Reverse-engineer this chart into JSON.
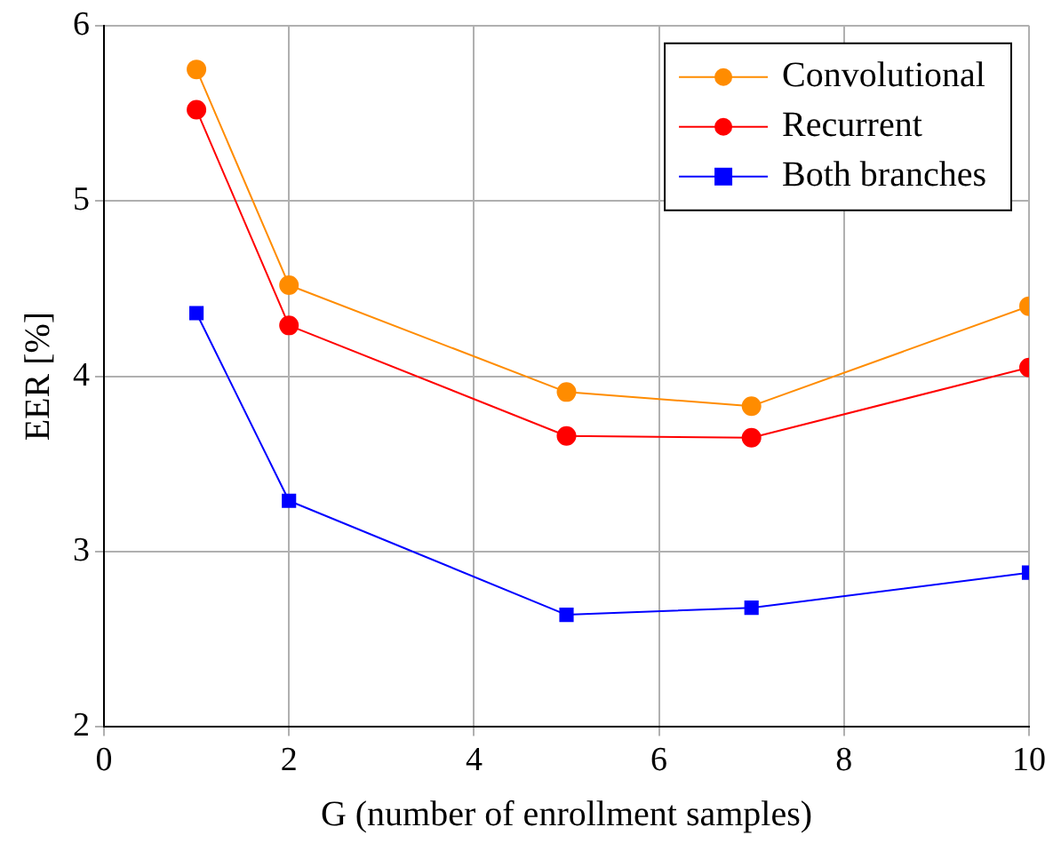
{
  "chart_data": {
    "type": "line",
    "xlabel": "G (number of enrollment samples)",
    "ylabel": "EER [%]",
    "x": [
      1,
      2,
      5,
      7,
      10
    ],
    "series": [
      {
        "name": "Convolutional",
        "color": "#ff8c00",
        "marker": "circle",
        "values": [
          5.75,
          4.52,
          3.91,
          3.83,
          4.4
        ]
      },
      {
        "name": "Recurrent",
        "color": "#ff0000",
        "marker": "circle",
        "values": [
          5.52,
          4.29,
          3.66,
          3.65,
          4.05
        ]
      },
      {
        "name": "Both branches",
        "color": "#0000ff",
        "marker": "square",
        "values": [
          4.36,
          3.29,
          2.64,
          2.68,
          2.88
        ]
      }
    ],
    "xlim": [
      0,
      10
    ],
    "xticks": [
      0,
      2,
      4,
      6,
      8,
      10
    ],
    "ylim": [
      2,
      6
    ],
    "yticks": [
      2,
      3,
      4,
      5,
      6
    ],
    "grid": true,
    "legend": "top right"
  }
}
